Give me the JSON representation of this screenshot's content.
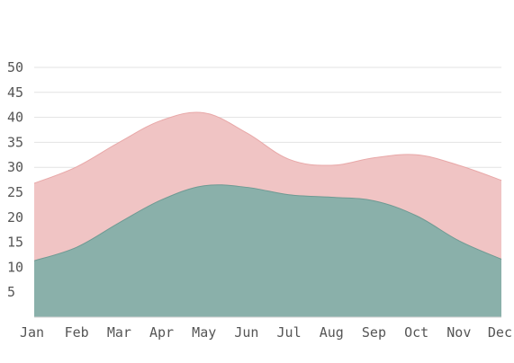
{
  "chart_data": {
    "type": "area",
    "title": "",
    "xlabel": "",
    "ylabel": "",
    "categories": [
      "Jan",
      "Feb",
      "Mar",
      "Apr",
      "May",
      "Jun",
      "Jul",
      "Aug",
      "Sep",
      "Oct",
      "Nov",
      "Dec"
    ],
    "yticks": [
      5,
      10,
      15,
      20,
      25,
      30,
      35,
      40,
      45,
      50
    ],
    "ylim": [
      0,
      50
    ],
    "grid": true,
    "legend": "none",
    "stacked": false,
    "series": [
      {
        "values": [
          26.8,
          30.1,
          35.0,
          39.4,
          40.9,
          36.9,
          31.6,
          30.4,
          31.9,
          32.5,
          30.4,
          27.4
        ],
        "color": "#f0c4c4",
        "stroke": "#e8a8a8"
      },
      {
        "values": [
          11.3,
          14.0,
          18.9,
          23.5,
          26.3,
          26.0,
          24.5,
          24.0,
          23.3,
          20.3,
          15.3,
          11.6
        ],
        "color": "#8ab0aa",
        "stroke": "#6f9a93"
      }
    ]
  }
}
